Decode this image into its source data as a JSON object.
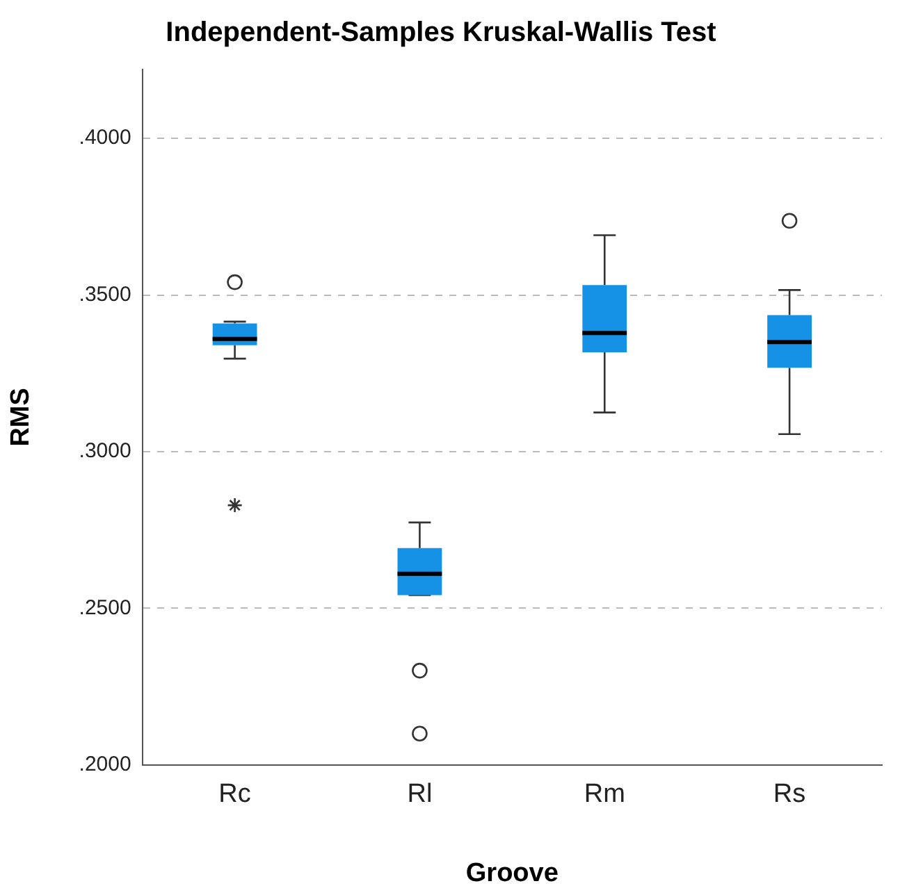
{
  "chart_data": {
    "type": "box",
    "title": "Independent-Samples Kruskal-Wallis Test",
    "xlabel": "Groove",
    "ylabel": "RMS",
    "categories": [
      "Rc",
      "Rl",
      "Rm",
      "Rs"
    ],
    "color": "#1591e6",
    "boxes": [
      {
        "low": 0.3297,
        "q1": 0.334,
        "median": 0.336,
        "q3": 0.3409,
        "high": 0.3415,
        "outliers": [
          0.3541,
          0.2829
        ]
      },
      {
        "low": 0.2542,
        "q1": 0.2542,
        "median": 0.261,
        "q3": 0.2692,
        "high": 0.2774,
        "outliers": [
          0.2301,
          0.21
        ]
      },
      {
        "low": 0.3125,
        "q1": 0.3317,
        "median": 0.3379,
        "q3": 0.3532,
        "high": 0.3691
      },
      {
        "low": 0.3056,
        "q1": 0.3268,
        "median": 0.335,
        "q3": 0.3436,
        "high": 0.3516,
        "outliers": [
          0.3737
        ]
      }
    ],
    "ylim": [
      0.2,
      0.422
    ],
    "yticks": [
      {
        "value": 0.2,
        "label": ".2000"
      },
      {
        "value": 0.25,
        "label": ".2500"
      },
      {
        "value": 0.3,
        "label": ".3000"
      },
      {
        "value": 0.35,
        "label": ".3500"
      },
      {
        "value": 0.4,
        "label": ".4000"
      }
    ],
    "grid": "y",
    "legend": false
  }
}
